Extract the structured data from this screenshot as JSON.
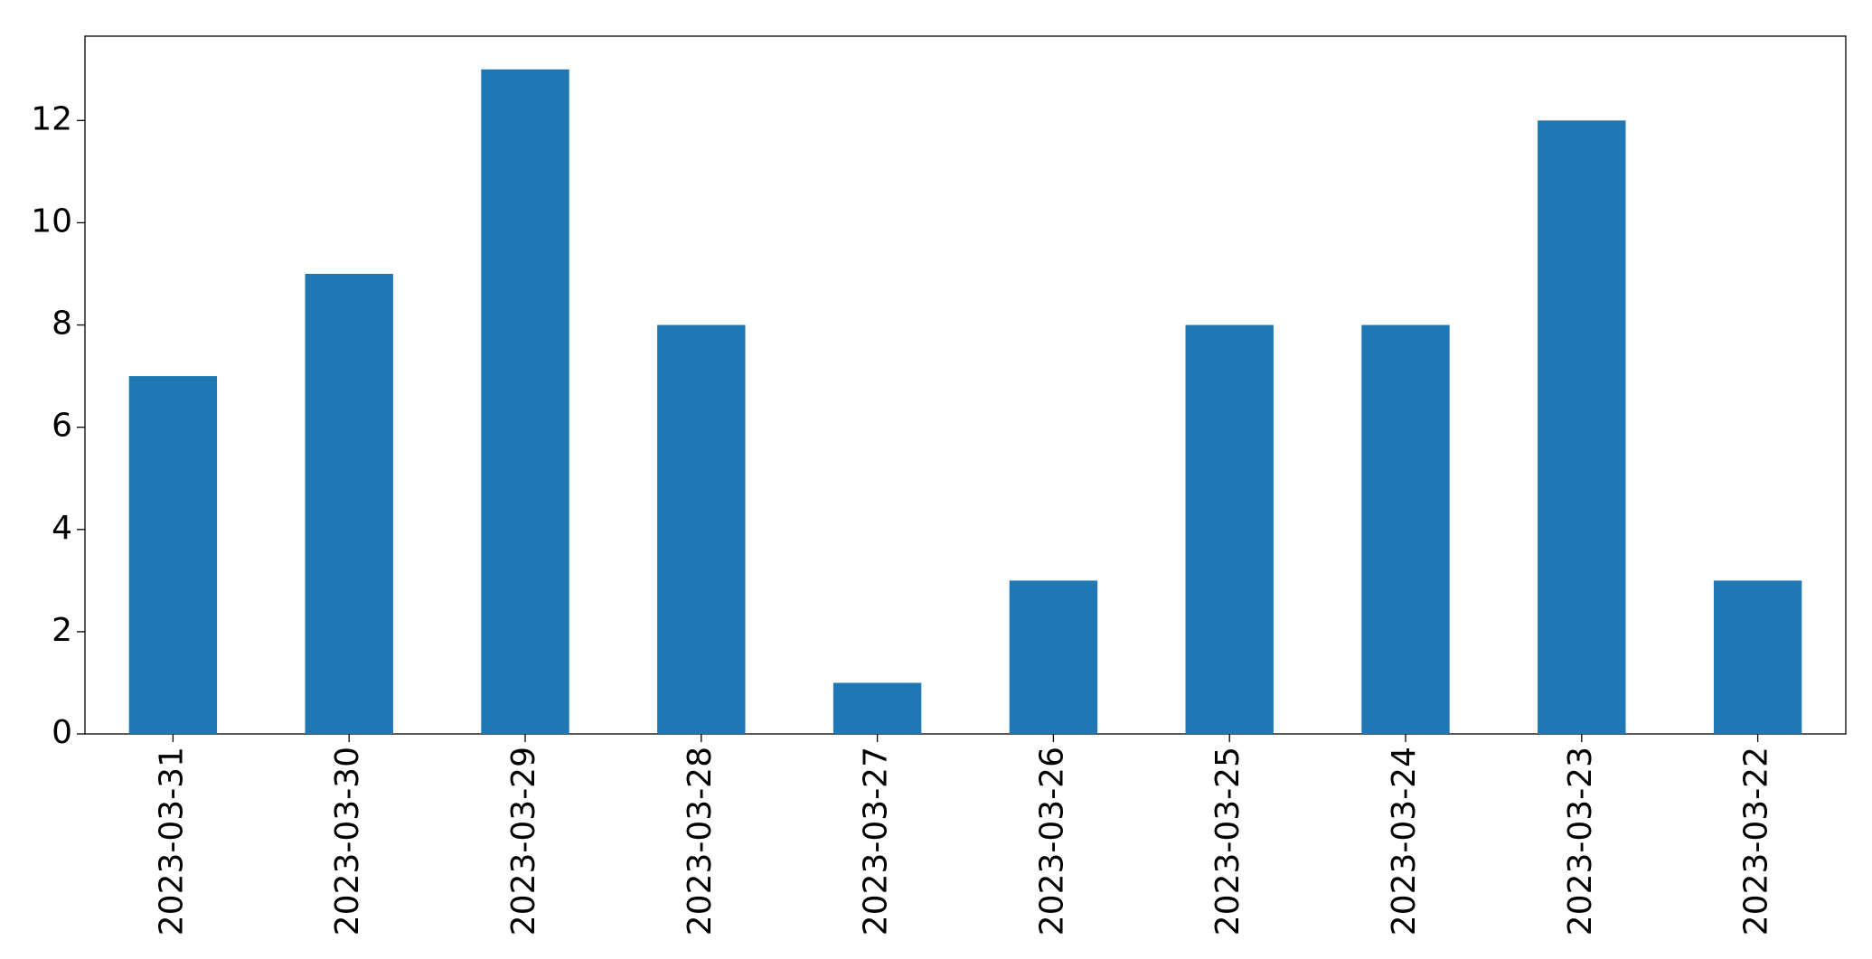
{
  "chart_data": {
    "type": "bar",
    "categories": [
      "2023-03-31",
      "2023-03-30",
      "2023-03-29",
      "2023-03-28",
      "2023-03-27",
      "2023-03-26",
      "2023-03-25",
      "2023-03-24",
      "2023-03-23",
      "2023-03-22"
    ],
    "values": [
      7,
      9,
      13,
      8,
      1,
      3,
      8,
      8,
      12,
      3
    ],
    "color": "#1f77b4",
    "ylim": [
      0,
      13.65
    ],
    "yticks": [
      0,
      2,
      4,
      6,
      8,
      10,
      12
    ],
    "grid": false
  }
}
